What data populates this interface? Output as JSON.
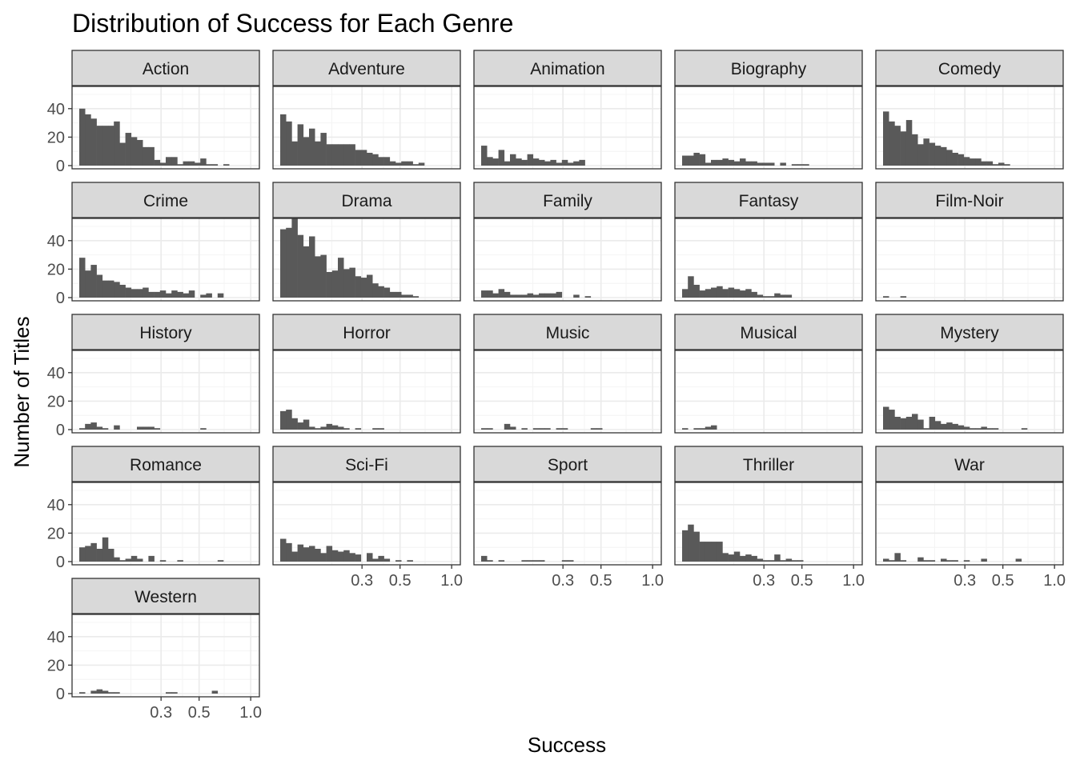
{
  "chart_data": {
    "type": "histogram-facets",
    "title": "Distribution of Success for Each Genre",
    "xlabel": "Success",
    "ylabel": "Number of Titles",
    "x_scale": "log10",
    "xlim": [
      0.1,
      1.02
    ],
    "x_ticks": [
      0.3,
      0.5,
      1.0
    ],
    "x_tick_labels": [
      "0.3",
      "0.5",
      "1.0"
    ],
    "ylim": [
      0,
      50
    ],
    "y_ticks": [
      0,
      20,
      40
    ],
    "y_tick_labels": [
      "0",
      "20",
      "40"
    ],
    "bins": 30,
    "grid": true,
    "facet_columns": 5,
    "colors": {
      "bar": "#595959",
      "strip": "#d9d9d9",
      "grid": "#ebebeb",
      "border": "#333333"
    },
    "facets": [
      {
        "genre": "Action",
        "counts": [
          40,
          36,
          33,
          28,
          28,
          28,
          31,
          16,
          23,
          20,
          18,
          13,
          13,
          4,
          2,
          6,
          6,
          1,
          3,
          3,
          2,
          5,
          1,
          1,
          0,
          1
        ]
      },
      {
        "genre": "Adventure",
        "counts": [
          36,
          31,
          17,
          29,
          20,
          26,
          17,
          23,
          15,
          15,
          15,
          15,
          15,
          11,
          11,
          9,
          8,
          6,
          6,
          3,
          2,
          3,
          3,
          1,
          2
        ]
      },
      {
        "genre": "Animation",
        "counts": [
          14,
          6,
          5,
          11,
          3,
          8,
          5,
          4,
          8,
          5,
          4,
          3,
          4,
          2,
          4,
          2,
          3,
          4
        ]
      },
      {
        "genre": "Biography",
        "counts": [
          7,
          7,
          9,
          8,
          2,
          4,
          4,
          5,
          4,
          3,
          5,
          3,
          3,
          2,
          2,
          2,
          0,
          2,
          0,
          1,
          1,
          1
        ]
      },
      {
        "genre": "Comedy",
        "counts": [
          38,
          31,
          28,
          24,
          32,
          22,
          15,
          19,
          16,
          14,
          13,
          11,
          9,
          8,
          6,
          5,
          5,
          3,
          3,
          1,
          2,
          1
        ]
      },
      {
        "genre": "Crime",
        "counts": [
          28,
          19,
          23,
          16,
          12,
          12,
          11,
          9,
          7,
          6,
          6,
          7,
          4,
          4,
          5,
          3,
          5,
          4,
          3,
          5,
          0,
          2,
          3,
          0,
          3
        ]
      },
      {
        "genre": "Drama",
        "counts": [
          48,
          49,
          56,
          44,
          36,
          43,
          29,
          30,
          18,
          19,
          28,
          20,
          21,
          15,
          14,
          16,
          10,
          8,
          7,
          4,
          4,
          2,
          2,
          1
        ]
      },
      {
        "genre": "Family",
        "counts": [
          5,
          5,
          3,
          6,
          4,
          2,
          2,
          2,
          3,
          2,
          3,
          3,
          3,
          4,
          0,
          0,
          2,
          0,
          1
        ]
      },
      {
        "genre": "Fantasy",
        "counts": [
          6,
          15,
          9,
          5,
          6,
          7,
          8,
          6,
          7,
          6,
          5,
          6,
          4,
          2,
          1,
          1,
          3,
          2,
          2
        ]
      },
      {
        "genre": "Film-Noir",
        "counts": [
          1,
          0,
          0,
          1
        ]
      },
      {
        "genre": "History",
        "counts": [
          1,
          4,
          5,
          2,
          1,
          0,
          3,
          0,
          0,
          0,
          2,
          2,
          2,
          1,
          0,
          0,
          0,
          0,
          0,
          0,
          0,
          1
        ]
      },
      {
        "genre": "Horror",
        "counts": [
          13,
          14,
          8,
          5,
          7,
          2,
          1,
          2,
          4,
          3,
          2,
          1,
          0,
          1,
          0,
          0,
          1,
          1
        ]
      },
      {
        "genre": "Music",
        "counts": [
          1,
          1,
          0,
          0,
          4,
          2,
          0,
          1,
          0,
          1,
          1,
          1,
          0,
          1,
          1,
          0,
          0,
          0,
          0,
          1,
          1
        ]
      },
      {
        "genre": "Musical",
        "counts": [
          1,
          0,
          1,
          1,
          2,
          3
        ]
      },
      {
        "genre": "Mystery",
        "counts": [
          16,
          14,
          9,
          8,
          9,
          11,
          7,
          1,
          9,
          6,
          4,
          5,
          4,
          3,
          2,
          1,
          1,
          2,
          1,
          1,
          0,
          0,
          0,
          0,
          1
        ]
      },
      {
        "genre": "Romance",
        "counts": [
          10,
          11,
          13,
          9,
          17,
          9,
          3,
          1,
          2,
          4,
          2,
          0,
          4,
          0,
          1,
          0,
          0,
          1,
          0,
          0,
          0,
          0,
          0,
          0,
          1
        ]
      },
      {
        "genre": "Sci-Fi",
        "counts": [
          16,
          13,
          7,
          12,
          10,
          11,
          9,
          6,
          11,
          8,
          7,
          8,
          6,
          5,
          0,
          6,
          2,
          4,
          2,
          0,
          1,
          0,
          1
        ]
      },
      {
        "genre": "Sport",
        "counts": [
          4,
          1,
          0,
          1,
          0,
          0,
          0,
          1,
          1,
          1,
          1,
          0,
          0,
          0,
          1,
          1
        ]
      },
      {
        "genre": "Thriller",
        "counts": [
          22,
          26,
          21,
          14,
          14,
          14,
          14,
          6,
          5,
          7,
          4,
          5,
          4,
          2,
          1,
          1,
          5,
          1,
          2,
          1,
          1
        ]
      },
      {
        "genre": "War",
        "counts": [
          2,
          1,
          6,
          1,
          0,
          0,
          3,
          1,
          1,
          0,
          2,
          1,
          1,
          0,
          1,
          0,
          0,
          2,
          0,
          0,
          0,
          0,
          0,
          2
        ]
      },
      {
        "genre": "Western",
        "counts": [
          1,
          0,
          2,
          3,
          2,
          1,
          1,
          0,
          0,
          0,
          0,
          0,
          0,
          0,
          0,
          1,
          1,
          0,
          0,
          0,
          0,
          0,
          0,
          2
        ]
      }
    ]
  }
}
